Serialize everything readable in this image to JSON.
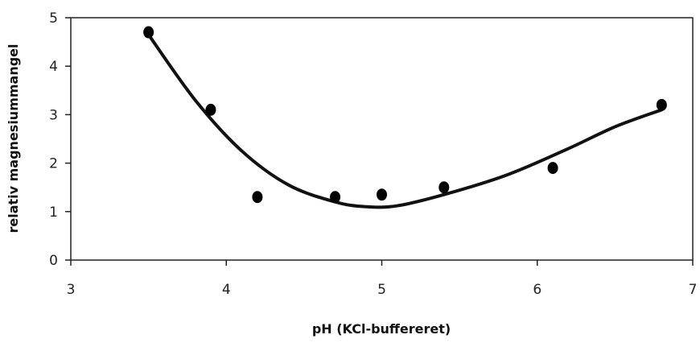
{
  "chart_data": {
    "type": "scatter",
    "title": "",
    "xlabel": "pH (KCl-buffereret)",
    "ylabel": "relativ magnesiummangel",
    "xlim": [
      3,
      7
    ],
    "ylim": [
      0,
      5
    ],
    "x_ticks": [
      "3",
      "4",
      "5",
      "6",
      "7"
    ],
    "y_ticks": [
      "0",
      "1",
      "2",
      "3",
      "4",
      "5"
    ],
    "grid": false,
    "legend": "none",
    "series": [
      {
        "kind": "points",
        "x": [
          3.5,
          3.9,
          4.2,
          4.7,
          5.0,
          5.4,
          6.1,
          6.8
        ],
        "y": [
          4.7,
          3.1,
          1.3,
          1.3,
          1.35,
          1.5,
          1.9,
          3.2
        ]
      },
      {
        "kind": "trendline",
        "x": [
          3.5,
          3.8,
          4.1,
          4.4,
          4.7,
          4.9,
          5.1,
          5.4,
          5.8,
          6.2,
          6.5,
          6.8
        ],
        "y": [
          4.65,
          3.3,
          2.25,
          1.55,
          1.2,
          1.1,
          1.12,
          1.35,
          1.75,
          2.3,
          2.75,
          3.1
        ]
      }
    ],
    "colors": {
      "points": "#000000",
      "line": "#111111",
      "axes": "#222222"
    }
  }
}
